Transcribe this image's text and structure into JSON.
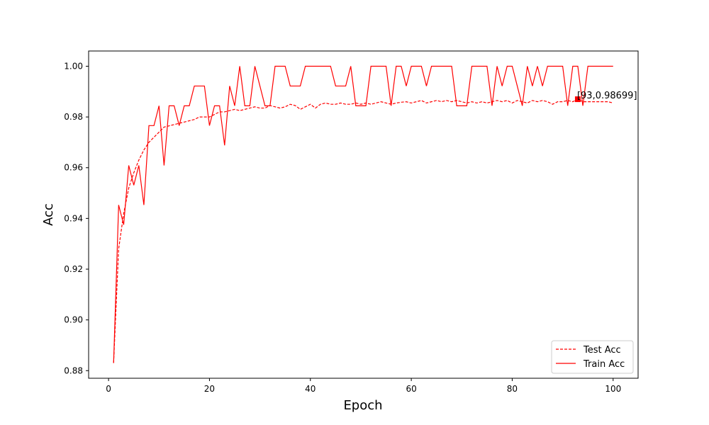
{
  "chart_data": {
    "type": "line",
    "xlabel": "Epoch",
    "ylabel": "Acc",
    "xlim": [
      -3.95,
      104.95
    ],
    "ylim": [
      0.877,
      1.006
    ],
    "xticks": [
      0,
      20,
      40,
      60,
      80,
      100
    ],
    "yticks": [
      0.88,
      0.9,
      0.92,
      0.94,
      0.96,
      0.98,
      1.0
    ],
    "xtick_labels": [
      "0",
      "20",
      "40",
      "60",
      "80",
      "100"
    ],
    "ytick_labels": [
      "0.88",
      "0.90",
      "0.92",
      "0.94",
      "0.96",
      "0.98",
      "1.00"
    ],
    "grid": false,
    "legend_position": "lower-right",
    "colors": {
      "series": "#ff0000"
    },
    "x": [
      1,
      2,
      3,
      4,
      5,
      6,
      7,
      8,
      9,
      10,
      11,
      12,
      13,
      14,
      15,
      16,
      17,
      18,
      19,
      20,
      21,
      22,
      23,
      24,
      25,
      26,
      27,
      28,
      29,
      30,
      31,
      32,
      33,
      34,
      35,
      36,
      37,
      38,
      39,
      40,
      41,
      42,
      43,
      44,
      45,
      46,
      47,
      48,
      49,
      50,
      51,
      52,
      53,
      54,
      55,
      56,
      57,
      58,
      59,
      60,
      61,
      62,
      63,
      64,
      65,
      66,
      67,
      68,
      69,
      70,
      71,
      72,
      73,
      74,
      75,
      76,
      77,
      78,
      79,
      80,
      81,
      82,
      83,
      84,
      85,
      86,
      87,
      88,
      89,
      90,
      91,
      92,
      93,
      94,
      95,
      96,
      97,
      98,
      99,
      100
    ],
    "series": [
      {
        "name": "Test Acc",
        "style": "dashed",
        "values": [
          0.883,
          0.928,
          0.942,
          0.952,
          0.958,
          0.963,
          0.967,
          0.97,
          0.972,
          0.974,
          0.976,
          0.9765,
          0.977,
          0.9775,
          0.978,
          0.9785,
          0.979,
          0.98,
          0.98,
          0.98,
          0.981,
          0.982,
          0.982,
          0.9825,
          0.983,
          0.9825,
          0.983,
          0.9835,
          0.984,
          0.9835,
          0.9835,
          0.9845,
          0.984,
          0.9835,
          0.984,
          0.985,
          0.9845,
          0.983,
          0.984,
          0.985,
          0.9835,
          0.985,
          0.9855,
          0.985,
          0.985,
          0.9855,
          0.985,
          0.985,
          0.9855,
          0.985,
          0.9855,
          0.985,
          0.9855,
          0.986,
          0.9855,
          0.985,
          0.9855,
          0.9858,
          0.986,
          0.9855,
          0.986,
          0.9865,
          0.9855,
          0.986,
          0.9865,
          0.986,
          0.9865,
          0.986,
          0.9865,
          0.986,
          0.9855,
          0.986,
          0.9855,
          0.986,
          0.9855,
          0.986,
          0.9865,
          0.986,
          0.9865,
          0.9855,
          0.9865,
          0.986,
          0.9855,
          0.9865,
          0.986,
          0.9865,
          0.986,
          0.985,
          0.986,
          0.986,
          0.9865,
          0.986,
          0.98699,
          0.986,
          0.986,
          0.986,
          0.986,
          0.986,
          0.986,
          0.9855
        ]
      },
      {
        "name": "Train Acc",
        "style": "solid",
        "values": [
          0.883,
          0.9453,
          0.9375,
          0.9609,
          0.9531,
          0.9609,
          0.9453,
          0.9766,
          0.9766,
          0.9844,
          0.9609,
          0.9844,
          0.9844,
          0.9766,
          0.9844,
          0.9844,
          0.9922,
          0.9922,
          0.9922,
          0.9766,
          0.9844,
          0.9844,
          0.9688,
          0.9922,
          0.9844,
          1.0,
          0.9844,
          0.9844,
          1.0,
          0.9922,
          0.9844,
          0.9844,
          1.0,
          1.0,
          1.0,
          0.9922,
          0.9922,
          0.9922,
          1.0,
          1.0,
          1.0,
          1.0,
          1.0,
          1.0,
          0.9922,
          0.9922,
          0.9922,
          1.0,
          0.9844,
          0.9844,
          0.9844,
          1.0,
          1.0,
          1.0,
          1.0,
          0.9844,
          1.0,
          1.0,
          0.9922,
          1.0,
          1.0,
          1.0,
          0.9922,
          1.0,
          1.0,
          1.0,
          1.0,
          1.0,
          0.9844,
          0.9844,
          0.9844,
          1.0,
          1.0,
          1.0,
          1.0,
          0.9844,
          1.0,
          0.9922,
          1.0,
          1.0,
          0.9922,
          0.9844,
          1.0,
          0.9922,
          1.0,
          0.9922,
          1.0,
          1.0,
          1.0,
          1.0,
          0.9844,
          1.0,
          1.0,
          0.9844,
          1.0,
          1.0,
          1.0,
          1.0,
          1.0,
          1.0
        ]
      }
    ],
    "annotation": {
      "x": 93,
      "y": 0.98699,
      "text": "[93,0.98699]"
    }
  }
}
